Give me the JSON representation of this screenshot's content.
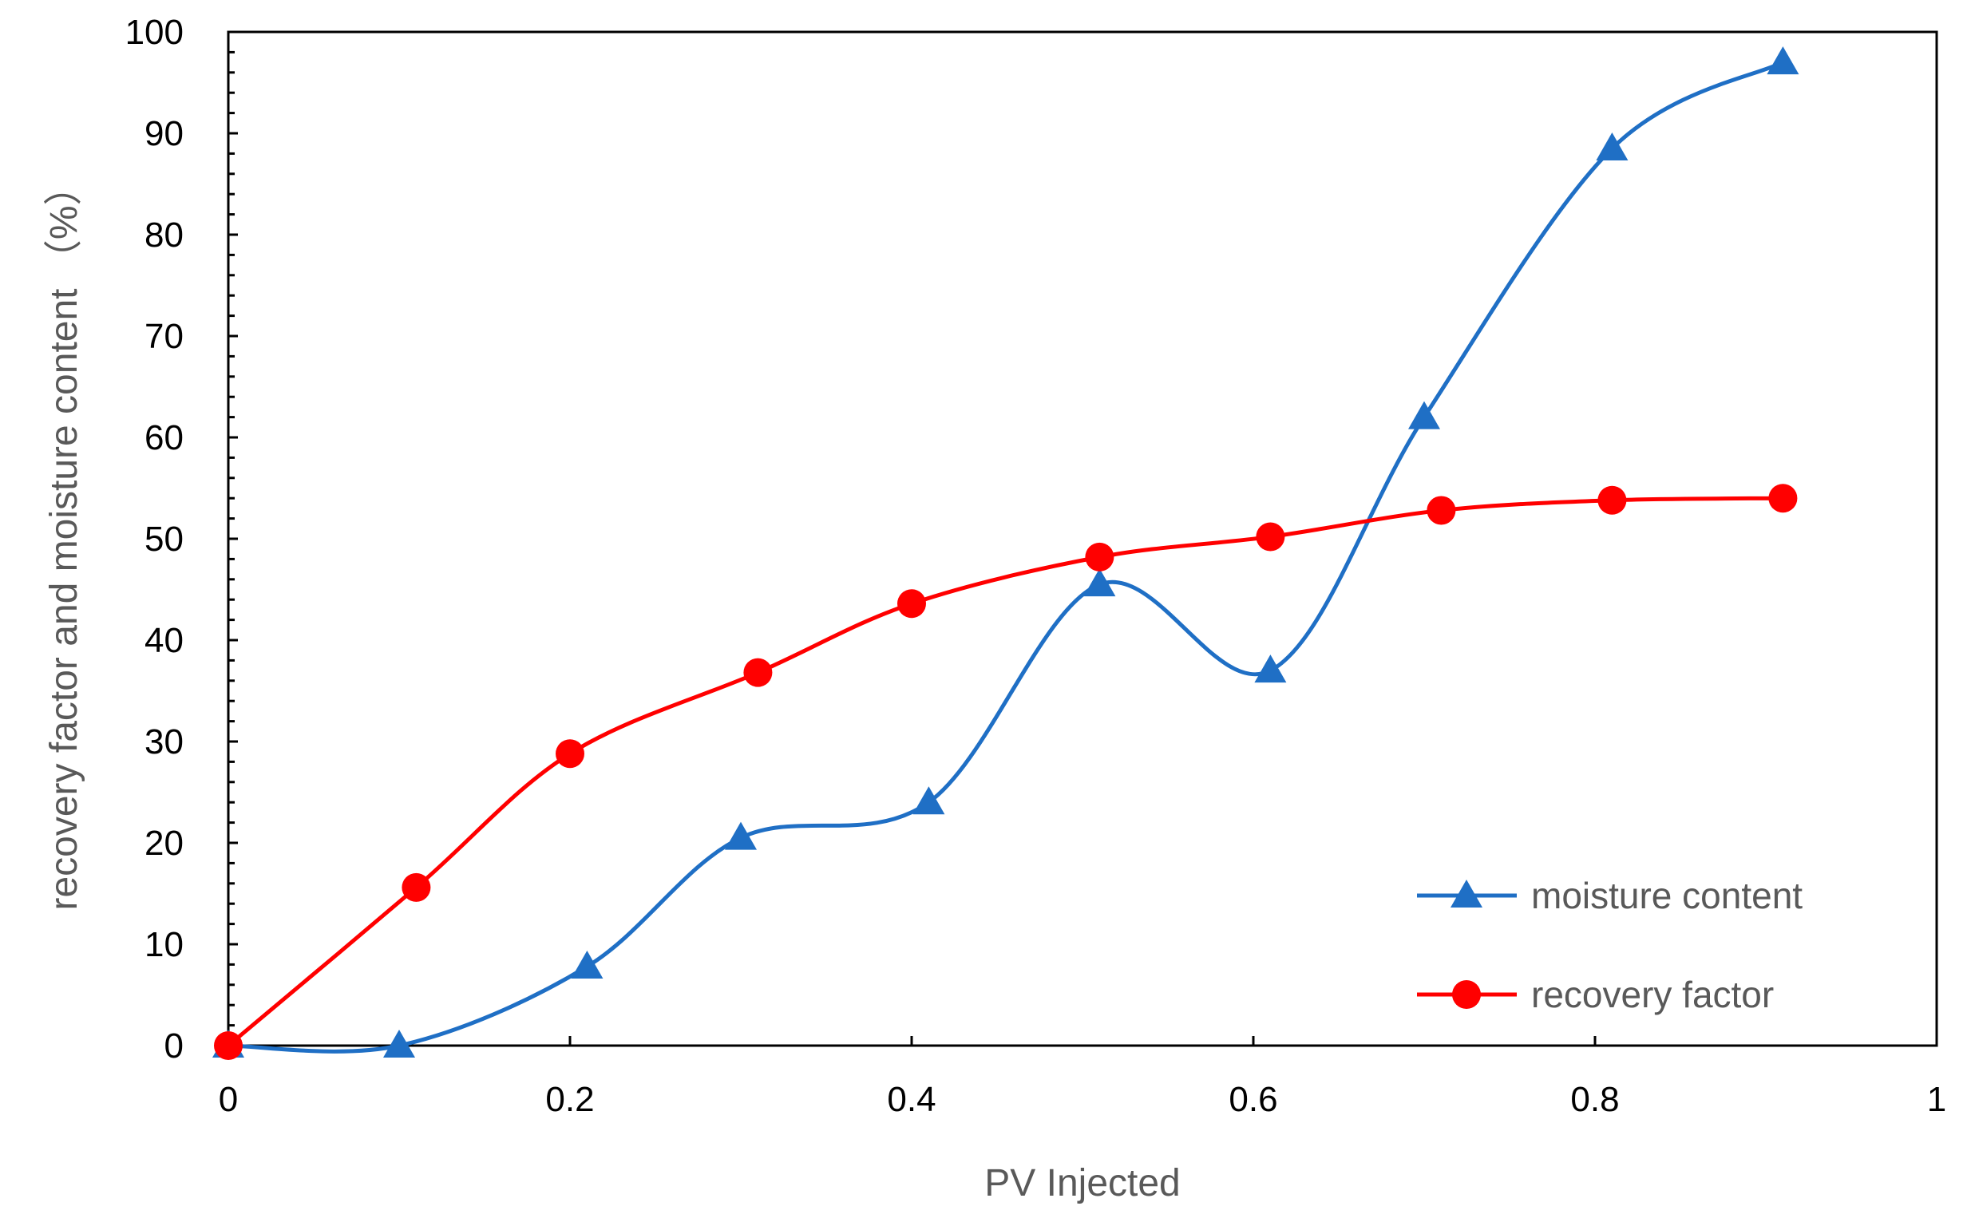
{
  "chart_data": {
    "type": "line",
    "xlabel": "PV Injected",
    "ylabel": "recovery factor and moisture content （%）",
    "xlim": [
      0,
      1
    ],
    "ylim": [
      0,
      100
    ],
    "x_ticks": [
      "0",
      "0.2",
      "0.4",
      "0.6",
      "0.8",
      "1"
    ],
    "y_ticks": [
      "0",
      "10",
      "20",
      "30",
      "40",
      "50",
      "60",
      "70",
      "80",
      "90",
      "100"
    ],
    "grid": false,
    "legend_position": "bottom-right",
    "smooth": true,
    "series": [
      {
        "name": "moisture content",
        "marker": "triangle",
        "color": "#1f6fc5",
        "x": [
          0,
          0.1,
          0.21,
          0.3,
          0.41,
          0.51,
          0.61,
          0.7,
          0.81,
          0.91
        ],
        "y": [
          0,
          0,
          7.8,
          20.5,
          24,
          45.5,
          37,
          62,
          88.5,
          97
        ]
      },
      {
        "name": "recovery factor",
        "marker": "circle",
        "color": "#ff0000",
        "x": [
          0,
          0.11,
          0.2,
          0.31,
          0.4,
          0.51,
          0.61,
          0.71,
          0.81,
          0.91
        ],
        "y": [
          0,
          15.6,
          28.8,
          36.8,
          43.6,
          48.2,
          50.2,
          52.8,
          53.8,
          54
        ]
      }
    ]
  }
}
